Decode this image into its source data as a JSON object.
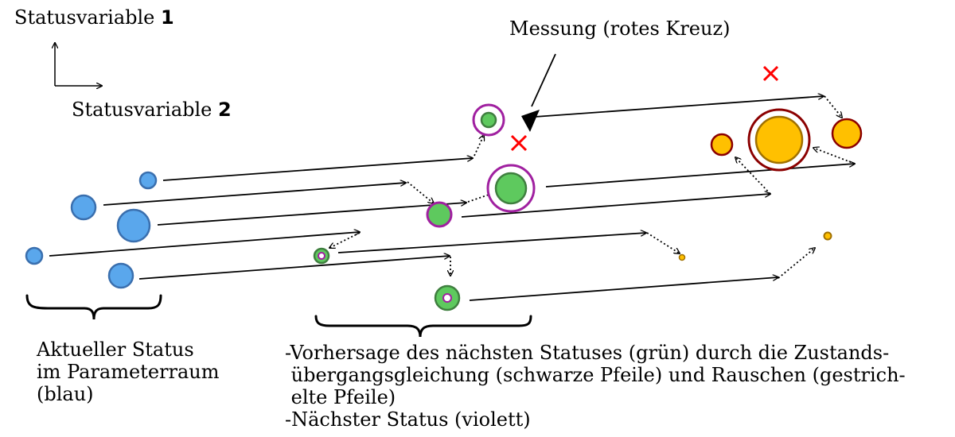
{
  "labels": {
    "axis_1_text": "Statusvariable",
    "axis_1_num": "1",
    "axis_2_text": "Statusvariable",
    "axis_2_num": "2",
    "measurement": "Messung (rotes Kreuz)",
    "current_state_lines": [
      "Aktueller Status",
      "im Parameterraum",
      "(blau)"
    ],
    "prediction_lines": [
      "-Vorhersage des nächsten Statuses (grün) durch die Zustands-",
      " übergangsgleichung (schwarze Pfeile) und Rauschen (gestrich-",
      " elte Pfeile)",
      "-Nächster Status (violett)"
    ]
  },
  "colors": {
    "current_state": "#5aa7ec",
    "current_state_stroke": "#3a6fae",
    "predicted_state": "#5ec95e",
    "predicted_state_stroke": "#3f7f3f",
    "next_state": "#a020a0",
    "final_state": "#ffc000",
    "final_state_stroke": "#8b0000",
    "measurement": "#ff0000"
  }
}
